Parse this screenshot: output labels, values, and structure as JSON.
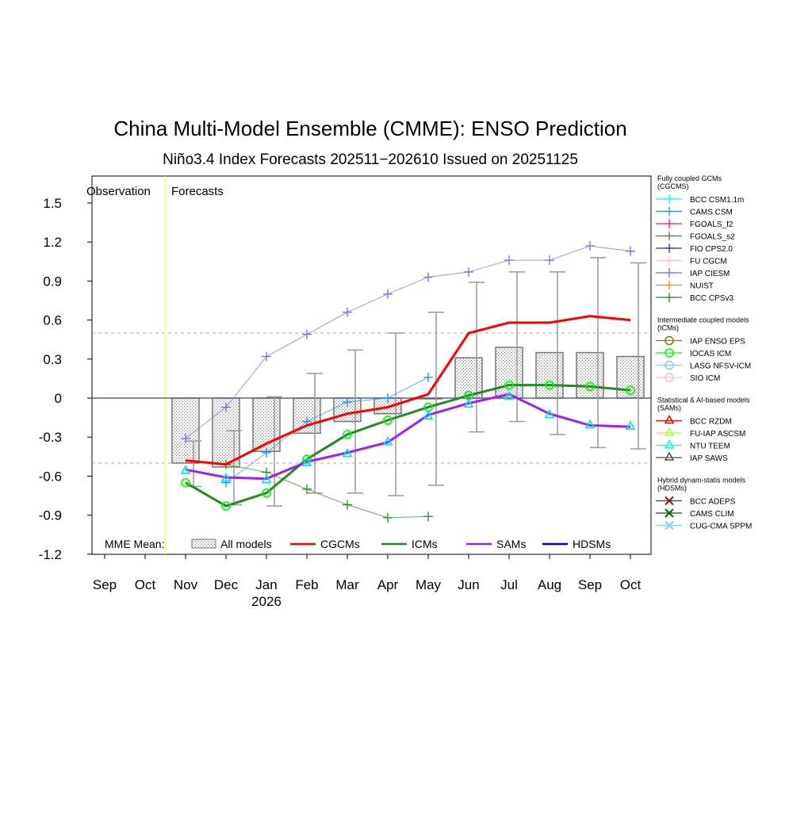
{
  "chart_data": {
    "type": "line",
    "title": "China Multi-Model Ensemble (CMME): ENSO Prediction",
    "subtitle": "Niño3.4 Index Forecasts 202511−202610 Issued on 20251125",
    "observation_label": "Observation",
    "forecast_label": "Forecasts",
    "ylim": [
      -1.2,
      1.7
    ],
    "yticks": [
      1.5,
      1.2,
      0.9,
      0.6,
      0.3,
      0,
      -0.3,
      -0.6,
      -0.9,
      -1.2
    ],
    "ytick_labels": [
      "1.5",
      "1.2",
      "0.9",
      "0.6",
      "0.3",
      "0",
      "-0.3",
      "-0.6",
      "-0.9",
      "-1.2"
    ],
    "reference_lines": [
      0.5,
      -0.5
    ],
    "x_labels": [
      "Sep",
      "Oct",
      "Nov",
      "Dec",
      "Jan",
      "Feb",
      "Mar",
      "Apr",
      "May",
      "Jun",
      "Jul",
      "Aug",
      "Sep",
      "Oct"
    ],
    "year_label": "2026",
    "forecast_months": [
      "Nov",
      "Dec",
      "Jan",
      "Feb",
      "Mar",
      "Apr",
      "May",
      "Jun",
      "Jul",
      "Aug",
      "Sep",
      "Oct"
    ],
    "all_models_bars": [
      -0.5,
      -0.53,
      -0.41,
      -0.27,
      -0.18,
      -0.12,
      0.0,
      0.31,
      0.39,
      0.35,
      0.35,
      0.32
    ],
    "spread_high": [
      -0.33,
      -0.25,
      0.01,
      0.19,
      0.37,
      0.5,
      0.66,
      0.89,
      0.97,
      0.97,
      1.08,
      1.04
    ],
    "spread_low": [
      -0.68,
      -0.82,
      -0.83,
      -0.73,
      -0.73,
      -0.75,
      -0.67,
      -0.26,
      -0.18,
      -0.28,
      -0.38,
      -0.39
    ],
    "mme_series": [
      {
        "name": "CGCMs",
        "color": "#ff0000",
        "values": [
          -0.48,
          -0.51,
          -0.35,
          -0.21,
          -0.12,
          -0.07,
          0.03,
          0.5,
          0.58,
          0.58,
          0.63,
          0.6
        ]
      },
      {
        "name": "ICMs",
        "color": "#228b22",
        "values": [
          -0.65,
          -0.83,
          -0.73,
          -0.47,
          -0.28,
          -0.17,
          -0.07,
          0.02,
          0.1,
          0.1,
          0.09,
          0.06
        ]
      },
      {
        "name": "SAMs",
        "color": "#a020f0",
        "values": [
          -0.55,
          -0.61,
          -0.62,
          -0.49,
          -0.42,
          -0.34,
          -0.13,
          -0.04,
          0.03,
          -0.12,
          -0.21,
          -0.22
        ]
      },
      {
        "name": "HDSMs",
        "color": "#0000cd",
        "values": []
      }
    ],
    "model_series": [
      {
        "name": "IAP CIESM",
        "color": "#7b68ee",
        "marker": "plus",
        "start": 0,
        "values": [
          -0.31,
          -0.07,
          0.32,
          0.49,
          0.66,
          0.8,
          0.93,
          0.97,
          1.06,
          1.06,
          1.17,
          1.13
        ]
      },
      {
        "name": "CAMS CSM",
        "color": "#1e90ff",
        "marker": "plus",
        "start": 1,
        "values": [
          -0.65,
          -0.42,
          -0.18,
          -0.03,
          0.0,
          0.16
        ]
      },
      {
        "name": "BCC CPSv3",
        "color": "#228b22",
        "marker": "plus",
        "start": 1,
        "values": [
          -0.51,
          -0.57,
          -0.7,
          -0.82,
          -0.92,
          -0.91
        ]
      },
      {
        "name": "IOCAS ICM",
        "color": "#00ff00",
        "marker": "circle",
        "start": 0,
        "values": [
          -0.65,
          -0.83,
          -0.73,
          -0.47,
          -0.28,
          -0.17,
          -0.07,
          0.02,
          0.1,
          0.1,
          0.09,
          0.06
        ]
      },
      {
        "name": "NTU TEEM",
        "color": "#00e5ee",
        "marker": "triangle",
        "start": 0,
        "values": [
          -0.56,
          -0.62,
          -0.63,
          -0.5,
          -0.43,
          -0.34,
          -0.14,
          -0.05,
          0.01,
          -0.13,
          -0.21,
          -0.22
        ]
      }
    ],
    "mme_legend": {
      "label": "MME Mean:",
      "items": [
        "All models",
        "CGCMs",
        "ICMs",
        "SAMs",
        "HDSMs"
      ]
    },
    "legend_groups": [
      {
        "title": "Fully coupled GCMs (CGCMS)",
        "items": [
          {
            "name": "BCC CSM1.1m",
            "color": "#00ffff",
            "marker": "plus"
          },
          {
            "name": "CAMS CSM",
            "color": "#1e90ff",
            "marker": "plus"
          },
          {
            "name": "FGOALS_f2",
            "color": "#ff1493",
            "marker": "plus"
          },
          {
            "name": "FGOALS_s2",
            "color": "#696969",
            "marker": "plus"
          },
          {
            "name": "FIO CPS2.0",
            "color": "#551a8b",
            "marker": "plus"
          },
          {
            "name": "FU CGCM",
            "color": "#ffc0cb",
            "marker": "plus"
          },
          {
            "name": "IAP CIESM",
            "color": "#7b68ee",
            "marker": "plus"
          },
          {
            "name": "NUIST",
            "color": "#ff8c00",
            "marker": "plus"
          },
          {
            "name": "BCC CPSv3",
            "color": "#228b22",
            "marker": "plus"
          }
        ]
      },
      {
        "title": "Intermediate coupled models (ICMs)",
        "items": [
          {
            "name": "IAP ENSO EPS",
            "color": "#8b7500",
            "marker": "circle"
          },
          {
            "name": "IOCAS ICM",
            "color": "#00ff00",
            "marker": "circle"
          },
          {
            "name": "LASG NFSV-ICM",
            "color": "#87cefa",
            "marker": "circle"
          },
          {
            "name": "SIO ICM",
            "color": "#ffc0cb",
            "marker": "circle"
          }
        ]
      },
      {
        "title": "Statistical & AI-based models (SAMs)",
        "items": [
          {
            "name": "BCC RZDM",
            "color": "#ff0000",
            "marker": "triangle"
          },
          {
            "name": "FU-IAP ASCSM",
            "color": "#adff2f",
            "marker": "triangle"
          },
          {
            "name": "NTU TEEM",
            "color": "#00ffff",
            "marker": "triangle"
          },
          {
            "name": "IAP SAWS",
            "color": "#4d4d4d",
            "marker": "triangle"
          }
        ]
      },
      {
        "title": "Hybrid dynam-statis models (HDSMs)",
        "items": [
          {
            "name": "BCC ADEPS",
            "color": "#8b1a1a",
            "marker": "x"
          },
          {
            "name": "CAMS CLIM",
            "color": "#006400",
            "marker": "x"
          },
          {
            "name": "CUG-CMA SPPM",
            "color": "#87cefa",
            "marker": "x"
          }
        ]
      }
    ]
  }
}
